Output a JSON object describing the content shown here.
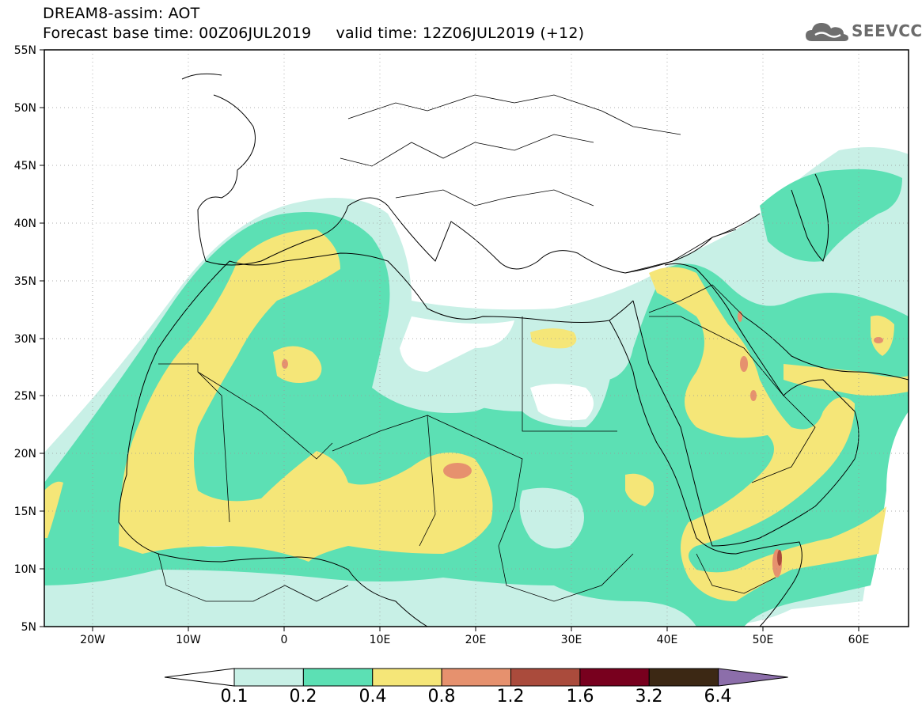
{
  "title": {
    "line1": "DREAM8-assim: AOT",
    "line2": "Forecast base time: 00Z06JUL2019     valid time: 12Z06JUL2019 (+12)"
  },
  "logo": {
    "text": "SEEVCCC",
    "icon": "cloud-icon"
  },
  "map": {
    "projection": "lat-lon",
    "lon_range": [
      -25,
      65
    ],
    "lat_range": [
      5,
      55
    ],
    "lat_ticks": [
      "55N",
      "50N",
      "45N",
      "40N",
      "35N",
      "30N",
      "25N",
      "20N",
      "15N",
      "10N",
      "5N"
    ],
    "lon_ticks": [
      "20W",
      "10W",
      "0",
      "10E",
      "20E",
      "30E",
      "40E",
      "50E",
      "60E"
    ],
    "grid": "dotted"
  },
  "colorbar": {
    "labels": [
      "0.1",
      "0.2",
      "0.4",
      "0.8",
      "1.2",
      "1.6",
      "3.2",
      "6.4"
    ],
    "colors": [
      "#ffffff",
      "#c8f0e6",
      "#5ce0b4",
      "#f5e678",
      "#e6916e",
      "#aa4b3c",
      "#78001e",
      "#3c2814",
      "#8c6eaa"
    ]
  }
}
